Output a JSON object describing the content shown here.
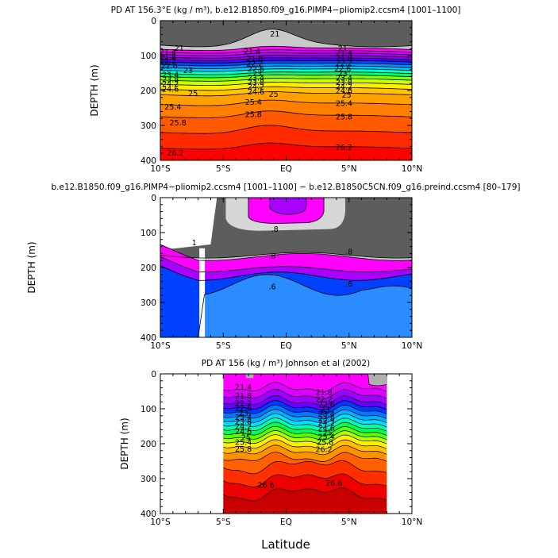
{
  "x_label": "Latitude",
  "chart_data": [
    {
      "type": "contour",
      "title": "PD AT 156.3°E (kg / m³), b.e12.B1850.f09_g16.PIMP4−pliomip2.ccsm4 [1001–1100]",
      "xlabel": "Latitude",
      "ylabel": "DEPTH (m)",
      "xlim": [
        -10,
        10
      ],
      "ylim": [
        400,
        0
      ],
      "x_ticks": [
        "10°S",
        "5°S",
        "EQ",
        "5°N",
        "10°N"
      ],
      "y_ticks": [
        "0",
        "100",
        "200",
        "300",
        "400"
      ],
      "contour_labels": [
        "21",
        "21.4",
        "21.8",
        "22.2",
        "22.6",
        "23",
        "23.4",
        "23.8",
        "24.2",
        "24.6",
        "25",
        "25.4",
        "25.8",
        "26.2"
      ],
      "label_positions": [
        {
          "text": "21",
          "x": -8.5,
          "depth": 78
        },
        {
          "text": "21",
          "x": -0.9,
          "depth": 38
        },
        {
          "text": "21",
          "x": 4.5,
          "depth": 80
        },
        {
          "text": "21.4",
          "x": -9.4,
          "depth": 90
        },
        {
          "text": "21.8",
          "x": -9.4,
          "depth": 103
        },
        {
          "text": "22.2",
          "x": -9.4,
          "depth": 116
        },
        {
          "text": "22.6",
          "x": -9.3,
          "depth": 129
        },
        {
          "text": "23",
          "x": -7.8,
          "depth": 142
        },
        {
          "text": "23.4",
          "x": -9.2,
          "depth": 155
        },
        {
          "text": "23.8",
          "x": -9.2,
          "depth": 168
        },
        {
          "text": "24.2",
          "x": -9.2,
          "depth": 181
        },
        {
          "text": "24.6",
          "x": -9.2,
          "depth": 195
        },
        {
          "text": "25",
          "x": -7.4,
          "depth": 208
        },
        {
          "text": "25.4",
          "x": -9.0,
          "depth": 247
        },
        {
          "text": "25.8",
          "x": -8.6,
          "depth": 292
        },
        {
          "text": "26.2",
          "x": -8.8,
          "depth": 378
        },
        {
          "text": "21.4",
          "x": -2.7,
          "depth": 88
        },
        {
          "text": "21.8",
          "x": -2.5,
          "depth": 108
        },
        {
          "text": "22.2",
          "x": -2.5,
          "depth": 123
        },
        {
          "text": "22.6",
          "x": -2.4,
          "depth": 138
        },
        {
          "text": "23",
          "x": -2.3,
          "depth": 151
        },
        {
          "text": "23.4",
          "x": -2.4,
          "depth": 164
        },
        {
          "text": "23.8",
          "x": -2.4,
          "depth": 176
        },
        {
          "text": "24.2",
          "x": -2.4,
          "depth": 189
        },
        {
          "text": "24.6",
          "x": -2.4,
          "depth": 203
        },
        {
          "text": "25",
          "x": -1.0,
          "depth": 210
        },
        {
          "text": "25.4",
          "x": -2.6,
          "depth": 233
        },
        {
          "text": "25.8",
          "x": -2.6,
          "depth": 268
        },
        {
          "text": "21.4",
          "x": 4.6,
          "depth": 92
        },
        {
          "text": "21.8",
          "x": 4.6,
          "depth": 108
        },
        {
          "text": "22.2",
          "x": 4.6,
          "depth": 122
        },
        {
          "text": "22.6",
          "x": 4.5,
          "depth": 138
        },
        {
          "text": "23",
          "x": 4.5,
          "depth": 151
        },
        {
          "text": "23.4",
          "x": 4.6,
          "depth": 164
        },
        {
          "text": "23.8",
          "x": 4.6,
          "depth": 176
        },
        {
          "text": "24.2",
          "x": 4.6,
          "depth": 189
        },
        {
          "text": "24.6",
          "x": 4.6,
          "depth": 200
        },
        {
          "text": "25",
          "x": 4.8,
          "depth": 213
        },
        {
          "text": "25.4",
          "x": 4.6,
          "depth": 236
        },
        {
          "text": "25.8",
          "x": 4.6,
          "depth": 275
        },
        {
          "text": "26.2",
          "x": 4.6,
          "depth": 362
        }
      ]
    },
    {
      "type": "contour",
      "title": "b.e12.B1850.f09_g16.PIMP4−pliomip2.ccsm4 [1001–1100] − b.e12.B1850C5CN.f09_g16.preind.ccsm4 [80–179]",
      "xlabel": "Latitude",
      "ylabel": "DEPTH (m)",
      "xlim": [
        -10,
        10
      ],
      "ylim": [
        400,
        0
      ],
      "x_ticks": [
        "10°S",
        "5°S",
        "EQ",
        "5°N",
        "10°N"
      ],
      "y_ticks": [
        "0",
        "100",
        "200",
        "300",
        "400"
      ],
      "contour_labels": [
        "1",
        ".8",
        ".6"
      ],
      "label_positions": [
        {
          "text": ".8",
          "x": -0.9,
          "depth": 90
        },
        {
          "text": "1",
          "x": -7.3,
          "depth": 128
        },
        {
          "text": ".8",
          "x": -1.1,
          "depth": 167
        },
        {
          "text": ".6",
          "x": -1.1,
          "depth": 255
        },
        {
          "text": ".8",
          "x": 5.0,
          "depth": 155
        },
        {
          "text": ".6",
          "x": 5.0,
          "depth": 247
        }
      ]
    },
    {
      "type": "contour",
      "title": "PD AT 156 (kg / m³) Johnson et al (2002)",
      "xlabel": "Latitude",
      "ylabel": "DEPTH (m)",
      "xlim": [
        -10,
        10
      ],
      "ylim": [
        400,
        0
      ],
      "x_ticks": [
        "10°S",
        "5°S",
        "EQ",
        "5°N",
        "10°N"
      ],
      "y_ticks": [
        "0",
        "100",
        "200",
        "300",
        "400"
      ],
      "data_extent_latitude": [
        -5,
        8
      ],
      "contour_labels": [
        "21.4",
        "21.8",
        "22.2",
        "22.6",
        "23",
        "23.4",
        "23.8",
        "24.2",
        "24.6",
        "25",
        "25.4",
        "25.8",
        "26.2",
        "26.6",
        "21.8",
        "25.8"
      ],
      "label_positions": [
        {
          "text": "21.4",
          "x": -3.4,
          "depth": 38
        },
        {
          "text": "21.8",
          "x": -3.4,
          "depth": 62
        },
        {
          "text": "22.2",
          "x": -3.4,
          "depth": 84
        },
        {
          "text": "22.6",
          "x": -3.4,
          "depth": 98
        },
        {
          "text": "23",
          "x": -3.4,
          "depth": 112
        },
        {
          "text": "23.4",
          "x": -3.4,
          "depth": 124
        },
        {
          "text": "23.8",
          "x": -3.4,
          "depth": 136
        },
        {
          "text": "24.2",
          "x": -3.4,
          "depth": 150
        },
        {
          "text": "24.6",
          "x": -3.4,
          "depth": 165
        },
        {
          "text": "25",
          "x": -3.2,
          "depth": 182
        },
        {
          "text": "25.4",
          "x": -3.4,
          "depth": 196
        },
        {
          "text": "25.8",
          "x": -3.4,
          "depth": 215
        },
        {
          "text": "26.6",
          "x": -1.6,
          "depth": 318
        },
        {
          "text": "21.8",
          "x": 3.0,
          "depth": 52
        },
        {
          "text": "22.2",
          "x": 3.0,
          "depth": 73
        },
        {
          "text": "22.6",
          "x": 3.2,
          "depth": 87
        },
        {
          "text": "23",
          "x": 3.1,
          "depth": 102
        },
        {
          "text": "23.4",
          "x": 3.2,
          "depth": 115
        },
        {
          "text": "23.8",
          "x": 3.2,
          "depth": 128
        },
        {
          "text": "24.2",
          "x": 3.2,
          "depth": 140
        },
        {
          "text": "24.6",
          "x": 3.2,
          "depth": 154
        },
        {
          "text": "25",
          "x": 3.3,
          "depth": 168
        },
        {
          "text": "25.4",
          "x": 3.2,
          "depth": 180
        },
        {
          "text": "25.8",
          "x": 3.1,
          "depth": 195
        },
        {
          "text": "26.2",
          "x": 3.0,
          "depth": 216
        },
        {
          "text": "26.6",
          "x": 3.8,
          "depth": 312
        }
      ]
    }
  ]
}
